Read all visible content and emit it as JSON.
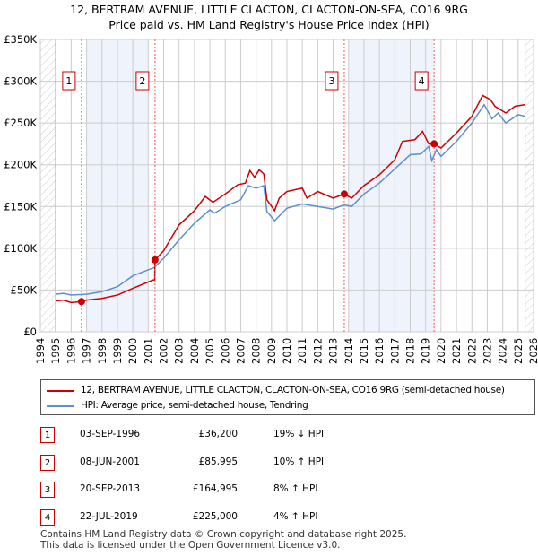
{
  "title_line1": "12, BERTRAM AVENUE, LITTLE CLACTON, CLACTON-ON-SEA, CO16 9RG",
  "title_line2": "Price paid vs. HM Land Registry's House Price Index (HPI)",
  "colors": {
    "price": "#cc0000",
    "hpi": "#5b8fd0",
    "shade": "#eef3fc"
  },
  "chart_data": {
    "type": "line",
    "title": "Price paid vs. HM Land Registry's House Price Index (HPI)",
    "xlim": [
      1994,
      2026
    ],
    "ylim": [
      0,
      350000
    ],
    "yticks": [
      {
        "v": 0,
        "label": "£0"
      },
      {
        "v": 50000,
        "label": "£50K"
      },
      {
        "v": 100000,
        "label": "£100K"
      },
      {
        "v": 150000,
        "label": "£150K"
      },
      {
        "v": 200000,
        "label": "£200K"
      },
      {
        "v": 250000,
        "label": "£250K"
      },
      {
        "v": 300000,
        "label": "£300K"
      },
      {
        "v": 350000,
        "label": "£350K"
      }
    ],
    "xticks": [
      "1994",
      "1995",
      "1996",
      "1997",
      "1998",
      "1999",
      "2000",
      "2001",
      "2002",
      "2003",
      "2004",
      "2005",
      "2006",
      "2007",
      "2008",
      "2009",
      "2010",
      "2011",
      "2012",
      "2013",
      "2014",
      "2015",
      "2016",
      "2017",
      "2018",
      "2019",
      "2020",
      "2021",
      "2022",
      "2023",
      "2024",
      "2025",
      "2026"
    ],
    "series": [
      {
        "name": "12, BERTRAM AVENUE, LITTLE CLACTON, CLACTON-ON-SEA, CO16 9RG (semi-detached house)",
        "color": "#cc0000",
        "x": [
          1995,
          1995.5,
          1996,
          1996.67,
          1997,
          1998,
          1999,
          2000,
          2001.3,
          2001.42,
          2001.44,
          2002,
          2003,
          2004,
          2004.7,
          2005.2,
          2006,
          2006.8,
          2007.3,
          2007.6,
          2007.9,
          2008.2,
          2008.5,
          2008.7,
          2009.2,
          2009.5,
          2010,
          2011,
          2011.3,
          2012,
          2013,
          2013.72,
          2014.2,
          2015,
          2016,
          2017,
          2017.5,
          2018.3,
          2018.8,
          2019.2,
          2019.55,
          2020,
          2021,
          2022,
          2022.7,
          2023.2,
          2023.5,
          2024.2,
          2024.8,
          2025.45
        ],
        "y": [
          37000,
          38000,
          35000,
          36200,
          38000,
          40000,
          44000,
          52000,
          62000,
          62000,
          85995,
          97000,
          128000,
          145000,
          162000,
          155000,
          165000,
          176000,
          178000,
          193000,
          185000,
          194000,
          189000,
          158000,
          145000,
          160000,
          168000,
          172000,
          160000,
          168000,
          160000,
          164995,
          160000,
          175000,
          188000,
          206000,
          228000,
          230000,
          240000,
          225000,
          225000,
          220000,
          238000,
          258000,
          283000,
          278000,
          270000,
          262000,
          270000,
          272000
        ]
      },
      {
        "name": "HPI: Average price, semi-detached house, Tendring",
        "color": "#5b8fd0",
        "x": [
          1995,
          1995.5,
          1996,
          1997,
          1998,
          1999,
          2000,
          2001.4,
          2002,
          2003,
          2003.5,
          2004,
          2005,
          2005.3,
          2006,
          2007,
          2007.5,
          2008,
          2008.5,
          2008.7,
          2009.2,
          2010,
          2011,
          2012,
          2013,
          2013.7,
          2014.2,
          2015,
          2016,
          2017,
          2018,
          2018.7,
          2019.2,
          2019.4,
          2019.7,
          2020,
          2021,
          2022,
          2022.8,
          2023.3,
          2023.7,
          2024.2,
          2025,
          2025.45
        ],
        "y": [
          45000,
          46000,
          44000,
          45000,
          48000,
          54000,
          67000,
          77000,
          88000,
          110000,
          120000,
          130000,
          146000,
          142000,
          150000,
          158000,
          175000,
          172000,
          175000,
          144000,
          133000,
          148000,
          153000,
          150000,
          147000,
          152000,
          150000,
          165000,
          178000,
          195000,
          212000,
          213000,
          222000,
          205000,
          218000,
          210000,
          228000,
          250000,
          272000,
          255000,
          262000,
          250000,
          260000,
          258000
        ]
      }
    ],
    "annotations": [
      {
        "label": "1",
        "x": 1996.67,
        "y": 36200
      },
      {
        "label": "2",
        "x": 2001.44,
        "y": 85995
      },
      {
        "label": "3",
        "x": 2013.72,
        "y": 164995
      },
      {
        "label": "4",
        "x": 2019.55,
        "y": 225000
      }
    ],
    "shaded": [
      [
        1997,
        2001
      ],
      [
        2014,
        2019.55
      ]
    ],
    "hatched": [
      [
        1994,
        1995
      ],
      [
        2025.45,
        2026
      ]
    ],
    "grid": true
  },
  "legend": {
    "price": "12, BERTRAM AVENUE, LITTLE CLACTON, CLACTON-ON-SEA, CO16 9RG (semi-detached house)",
    "hpi": "HPI: Average price, semi-detached house, Tendring"
  },
  "transactions": [
    {
      "num": "1",
      "date": "03-SEP-1996",
      "price": "£36,200",
      "hpi": "19% ↓ HPI"
    },
    {
      "num": "2",
      "date": "08-JUN-2001",
      "price": "£85,995",
      "hpi": "10% ↑ HPI"
    },
    {
      "num": "3",
      "date": "20-SEP-2013",
      "price": "£164,995",
      "hpi": "8% ↑ HPI"
    },
    {
      "num": "4",
      "date": "22-JUL-2019",
      "price": "£225,000",
      "hpi": "4% ↑ HPI"
    }
  ],
  "footer1": "Contains HM Land Registry data © Crown copyright and database right 2025.",
  "footer2": "This data is licensed under the Open Government Licence v3.0."
}
